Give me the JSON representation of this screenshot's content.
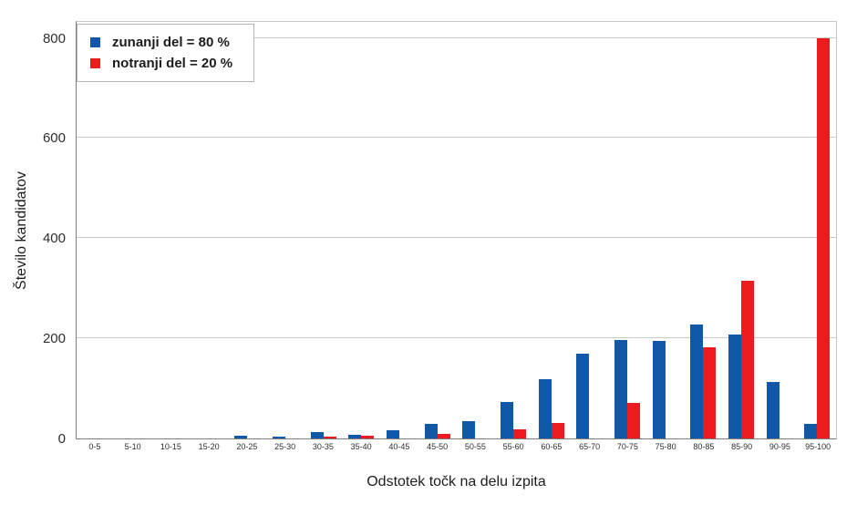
{
  "chart_data": {
    "type": "bar",
    "title": "",
    "xlabel": "Odstotek točk na delu izpita",
    "ylabel": "Število kandidatov",
    "categories": [
      "0-5",
      "5-10",
      "10-15",
      "15-20",
      "20-25",
      "25-30",
      "30-35",
      "35-40",
      "40-45",
      "45-50",
      "50-55",
      "55-60",
      "60-65",
      "65-70",
      "70-75",
      "75-80",
      "80-85",
      "85-90",
      "90-95",
      "95-100"
    ],
    "series": [
      {
        "name": "zunanji del = 80 %",
        "color": "#1057A8",
        "values": [
          0,
          0,
          0,
          0,
          5,
          4,
          12,
          8,
          16,
          30,
          34,
          72,
          118,
          170,
          197,
          195,
          227,
          207,
          113,
          30
        ]
      },
      {
        "name": "notranji del = 20 %",
        "color": "#EC1B1E",
        "values": [
          0,
          0,
          0,
          0,
          0,
          0,
          3,
          5,
          0,
          10,
          0,
          18,
          31,
          0,
          71,
          0,
          183,
          315,
          0,
          800
        ]
      }
    ],
    "ylim": [
      0,
      836
    ],
    "yticks": [
      0,
      200,
      400,
      600,
      800
    ],
    "grid": true,
    "legend_position": "top-left"
  },
  "colors": {
    "bar_blue": "#1057A8",
    "bar_red": "#EC1B1E",
    "gridline": "#c9c9c9",
    "axis": "#7d7d7d",
    "text": "#1d1d1d",
    "legend_border": "#b5b5b5",
    "background": "#ffffff"
  }
}
